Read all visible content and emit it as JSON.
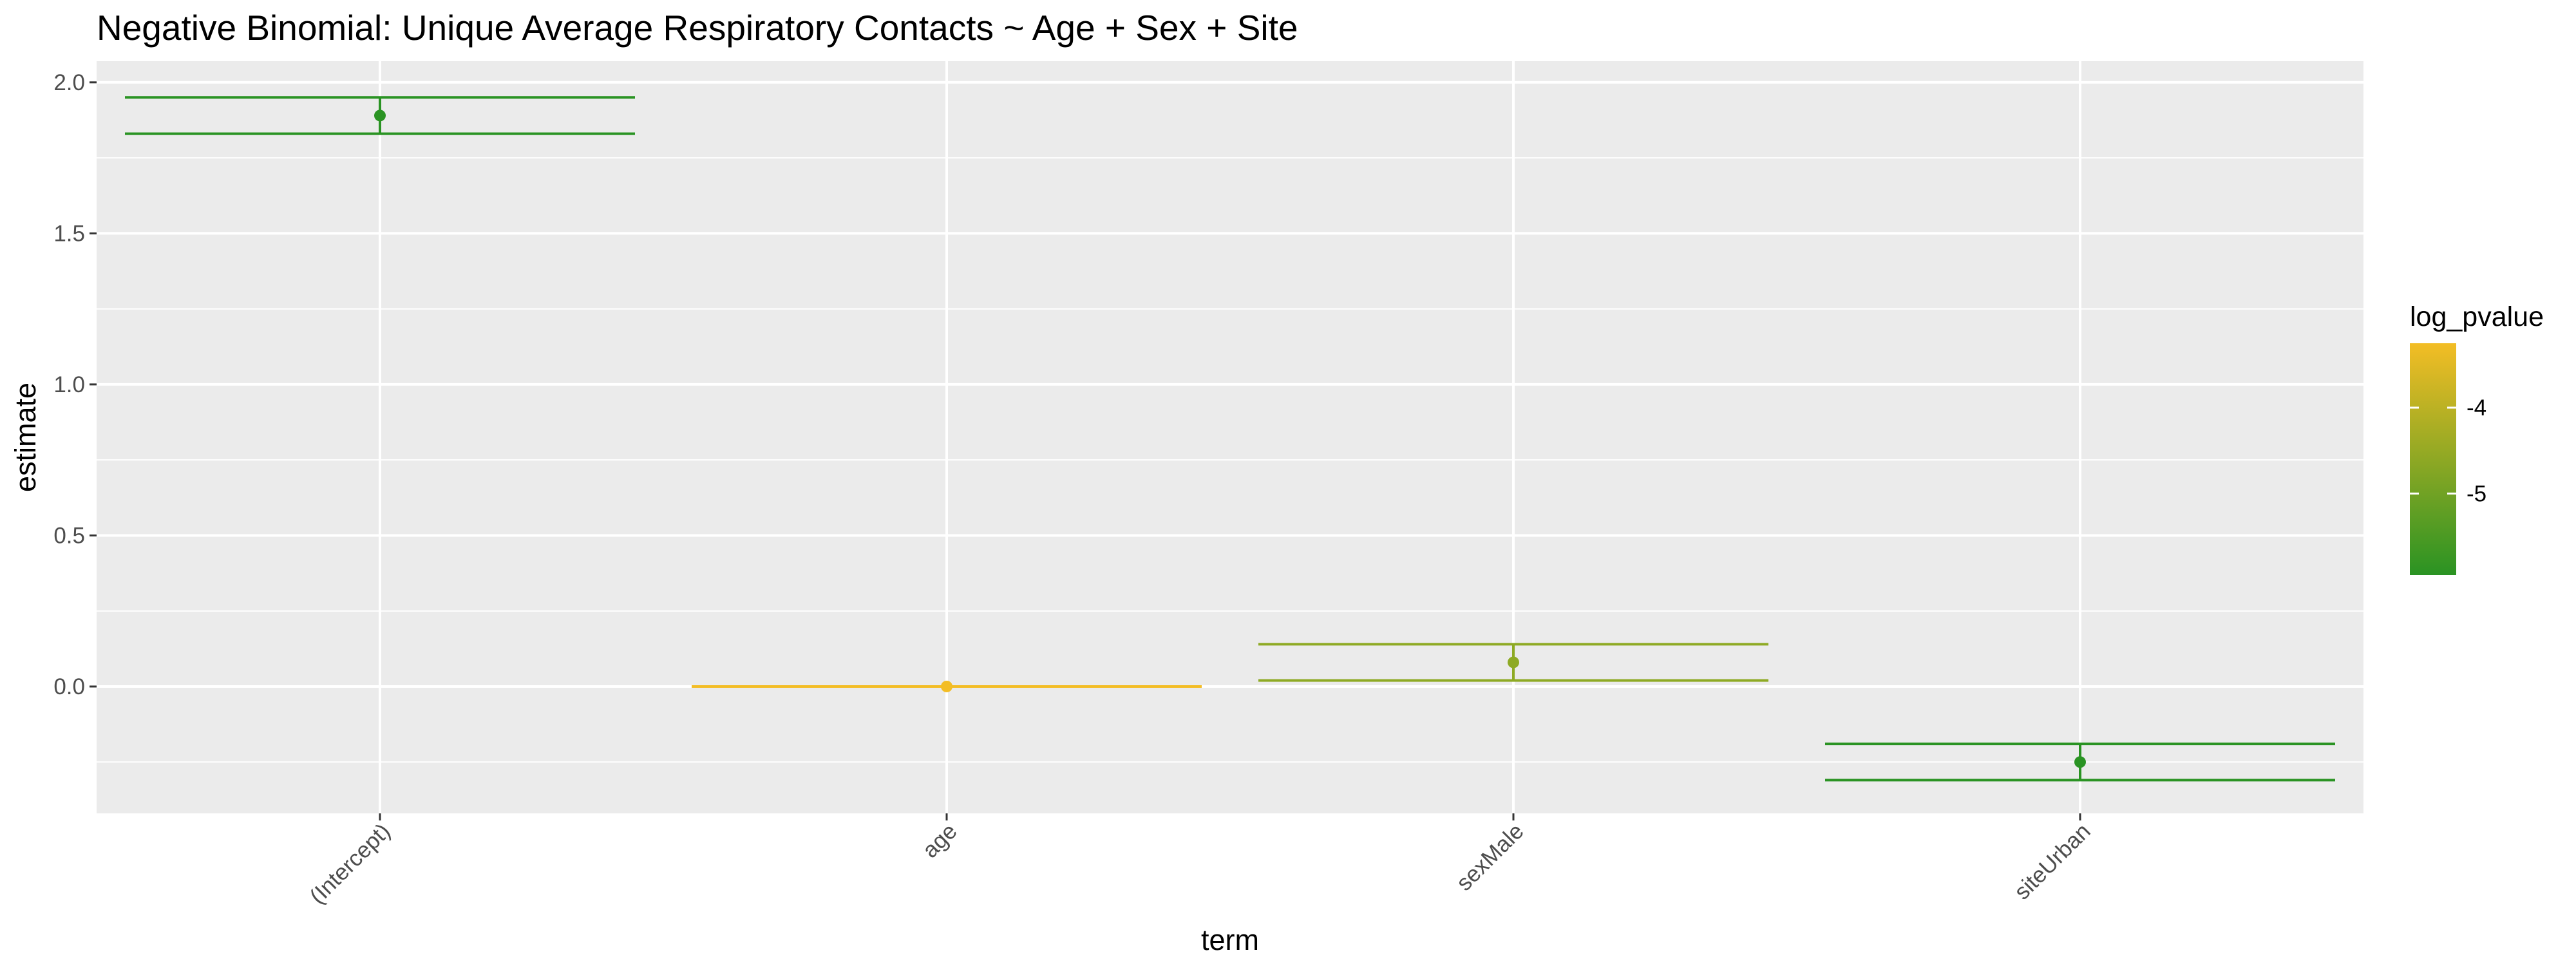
{
  "chart_data": {
    "type": "errorbar",
    "title": "Negative Binomial: Unique Average Respiratory Contacts ~ Age + Sex + Site",
    "xlabel": "term",
    "ylabel": "estimate",
    "ylim": [
      -0.42,
      2.07
    ],
    "y_ticks": [
      0.0,
      0.5,
      1.0,
      1.5,
      2.0
    ],
    "y_tick_labels": [
      "0.0",
      "0.5",
      "1.0",
      "1.5",
      "2.0"
    ],
    "y_minor_ticks": [
      -0.25,
      0.25,
      0.75,
      1.25,
      1.75
    ],
    "categories": [
      "(Intercept)",
      "age",
      "sexMale",
      "siteUrban"
    ],
    "estimates": [
      1.89,
      0.0,
      0.08,
      -0.25
    ],
    "conf_low": [
      1.83,
      0.0,
      0.02,
      -0.31
    ],
    "conf_high": [
      1.95,
      0.0,
      0.14,
      -0.19
    ],
    "log_pvalue": [
      -5.9,
      -3.3,
      -4.9,
      -5.9
    ],
    "legend": {
      "title": "log_pvalue",
      "placement": "right",
      "range": [
        -5.95,
        -3.25
      ],
      "ticks": [
        -4,
        -5
      ],
      "tick_labels": [
        "-4",
        "-5"
      ],
      "color_low": "#2a9323",
      "color_high": "#f3bd25"
    },
    "colors": {
      "panel_bg": "#ebebeb",
      "grid": "#ffffff",
      "points": [
        "#2a9323",
        "#f3bd25",
        "#8eaa24",
        "#2a9323"
      ]
    }
  }
}
